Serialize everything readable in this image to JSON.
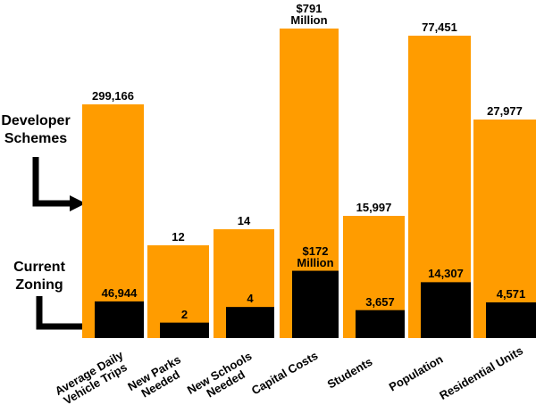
{
  "chart_data": {
    "type": "bar",
    "categories": [
      "Average Daily Vehicle Trips",
      "New Parks Needed",
      "New Schools Needed",
      "Capital Costs",
      "Students",
      "Population",
      "Residential Units"
    ],
    "series": [
      {
        "name": "Developer Schemes",
        "color": "#ff9c00",
        "values": [
          299166,
          12,
          14,
          791000000,
          15997,
          77451,
          27977
        ],
        "value_labels": [
          "299,166",
          "12",
          "14",
          "$791 Million",
          "15,997",
          "77,451",
          "27,977"
        ]
      },
      {
        "name": "Current Zoning",
        "color": "#000000",
        "values": [
          46944,
          2,
          4,
          172000000,
          3657,
          14307,
          4571
        ],
        "value_labels": [
          "46,944",
          "2",
          "4",
          "$172 Million",
          "3,657",
          "14,307",
          "4,571"
        ]
      }
    ]
  }
}
